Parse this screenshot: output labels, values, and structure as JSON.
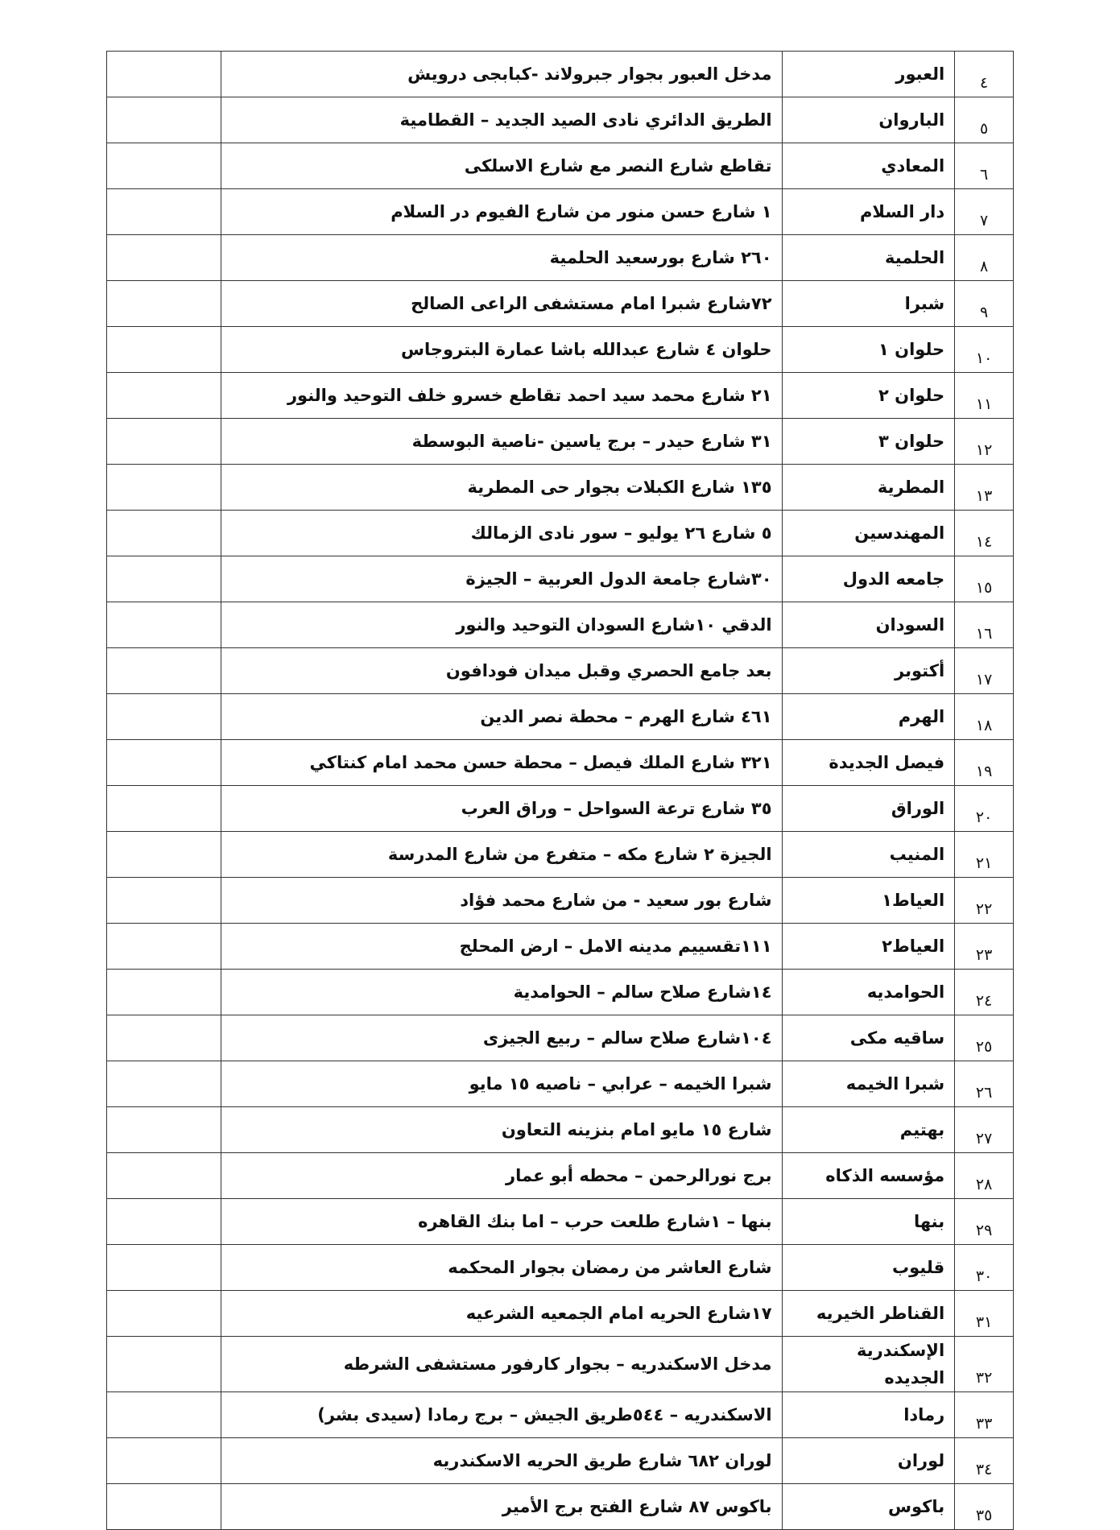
{
  "table": {
    "rows": [
      [
        "٤",
        "العبور",
        "مدخل العبور بجوار جبرولاند -كبابجى درويش"
      ],
      [
        "٥",
        "الباروان",
        "الطريق الدائري نادى الصيد الجديد – القطامية"
      ],
      [
        "٦",
        "المعادي",
        "تقاطع شارع النصر مع شارع الاسلكى"
      ],
      [
        "٧",
        "دار السلام",
        "١ شارع حسن منور من شارع الفيوم در السلام"
      ],
      [
        "٨",
        "الحلمية",
        "٢٦٠ شارع بورسعيد الحلمية"
      ],
      [
        "٩",
        "شبرا",
        "٧٢شارع شبرا امام مستشفى الراعى الصالح"
      ],
      [
        "١٠",
        "حلوان ١",
        "حلوان ٤ شارع عبدالله باشا عمارة البتروجاس"
      ],
      [
        "١١",
        "حلوان ٢",
        "٢١ شارع محمد سيد احمد تقاطع خسرو خلف التوحيد والنور"
      ],
      [
        "١٢",
        "حلوان ٣",
        "٣١ شارع حيدر – برج ياسين -ناصية البوسطة"
      ],
      [
        "١٣",
        "المطرية",
        "١٣٥ شارع الكبلات بجوار حى المطرية"
      ],
      [
        "١٤",
        "المهندسين",
        "٥ شارع ٢٦ يوليو – سور نادى الزمالك"
      ],
      [
        "١٥",
        "جامعه الدول",
        "٣٠شارع جامعة الدول العربية – الجيزة"
      ],
      [
        "١٦",
        "السودان",
        "الدقي ١٠شارع السودان التوحيد والنور"
      ],
      [
        "١٧",
        "أكتوبر",
        "بعد جامع الحصري وقبل ميدان فودافون"
      ],
      [
        "١٨",
        "الهرم",
        "٤٦١ شارع الهرم – محطة نصر الدين"
      ],
      [
        "١٩",
        "فيصل الجديدة",
        "٣٢١ شارع الملك فيصل – محطة حسن محمد امام كنتاكي"
      ],
      [
        "٢٠",
        "الوراق",
        "٣٥ شارع ترعة السواحل – وراق العرب"
      ],
      [
        "٢١",
        "المنيب",
        "الجيزة ٢ شارع مكه – متفرع من شارع المدرسة"
      ],
      [
        "٢٢",
        "العياط١",
        "شارع بور سعيد - من شارع محمد فؤاد"
      ],
      [
        "٢٣",
        "العياط٢",
        "١١١تقسييم مدينه الامل – ارض المحلج"
      ],
      [
        "٢٤",
        "الحوامديه",
        "١٤شارع صلاح سالم – الحوامدية"
      ],
      [
        "٢٥",
        "ساقيه مكى",
        "١٠٤شارع صلاح سالم – ربيع الجيزى"
      ],
      [
        "٢٦",
        "شبرا الخيمه",
        "شبرا الخيمه – عرابي – ناصيه ١٥ مايو"
      ],
      [
        "٢٧",
        "بهتيم",
        "شارع ١٥ مايو امام بنزينه التعاون"
      ],
      [
        "٢٨",
        "مؤسسه الذكاه",
        "برج نورالرحمن – محطه أبو عمار"
      ],
      [
        "٢٩",
        "بنها",
        "بنها – ١شارع طلعت حرب – اما بنك القاهره"
      ],
      [
        "٣٠",
        "قليوب",
        "شارع العاشر من رمضان بجوار المحكمه"
      ],
      [
        "٣١",
        "القناطر الخيريه",
        "١٧شارع الحريه امام الجمعيه الشرعيه"
      ],
      [
        "٣٢",
        "الإسكندرية الجديده",
        "مدخل الاسكندريه – بجوار كارفور مستشفى الشرطه"
      ],
      [
        "٣٣",
        "رمادا",
        "الاسكندريه – ٥٤٤طريق الجيش – برج رمادا (سيدى بشر)"
      ],
      [
        "٣٤",
        "لوران",
        "لوران ٦٨٢ شارع طريق الحريه الاسكندريه"
      ],
      [
        "٣٥",
        "باكوس",
        "باكوس ٨٧ شارع الفتح برج الأمير"
      ]
    ]
  }
}
